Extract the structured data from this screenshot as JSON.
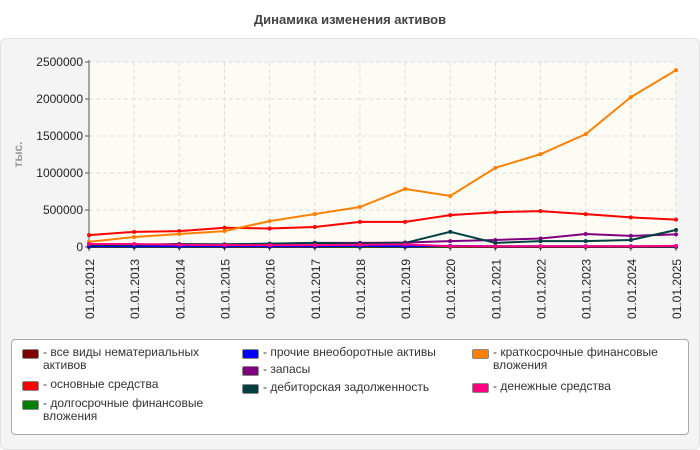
{
  "chart_data": {
    "type": "line",
    "title": "Динамика изменения активов",
    "ylabel": "тыс.",
    "ylim": [
      0,
      2500000
    ],
    "yticks": [
      "0",
      "500000",
      "1000000",
      "1500000",
      "2000000",
      "2500000"
    ],
    "grid": true,
    "legend_position": "bottom",
    "categories": [
      "01.01.2012",
      "01.01.2013",
      "01.01.2014",
      "01.01.2015",
      "01.01.2016",
      "01.01.2017",
      "01.01.2018",
      "01.01.2019",
      "01.01.2020",
      "01.01.2021",
      "01.01.2022",
      "01.01.2023",
      "01.01.2024",
      "01.01.2025"
    ],
    "series": [
      {
        "name": "- все виды нематериальных активов",
        "color": "#800000",
        "values": [
          0,
          0,
          0,
          0,
          0,
          0,
          0,
          0,
          0,
          0,
          0,
          0,
          0,
          0
        ]
      },
      {
        "name": "- основные средства",
        "color": "#ff0000",
        "values": [
          160000,
          205000,
          215000,
          260000,
          250000,
          270000,
          340000,
          340000,
          430000,
          470000,
          485000,
          445000,
          400000,
          370000
        ]
      },
      {
        "name": "- долгосрочные финансовые вложения",
        "color": "#008000",
        "values": [
          5000,
          5000,
          5000,
          5000,
          5000,
          5000,
          5000,
          5000,
          5000,
          5000,
          5000,
          5000,
          5000,
          5000
        ]
      },
      {
        "name": "- прочие внеоборотные активы",
        "color": "#0000ff",
        "values": [
          10000,
          10000,
          10000,
          10000,
          10000,
          10000,
          15000,
          10000,
          15000,
          10000,
          10000,
          10000,
          10000,
          10000
        ]
      },
      {
        "name": "- запасы",
        "color": "#800080",
        "values": [
          30000,
          30000,
          35000,
          35000,
          40000,
          55000,
          55000,
          60000,
          80000,
          95000,
          115000,
          175000,
          150000,
          170000
        ]
      },
      {
        "name": "- дебиторская задолженность",
        "color": "#004040",
        "values": [
          30000,
          30000,
          40000,
          35000,
          45000,
          55000,
          45000,
          55000,
          205000,
          55000,
          80000,
          80000,
          95000,
          230000
        ]
      },
      {
        "name": "- краткосрочные финансовые вложения",
        "color": "#ff8000",
        "values": [
          70000,
          135000,
          175000,
          215000,
          350000,
          445000,
          540000,
          785000,
          690000,
          1070000,
          1255000,
          1525000,
          2025000,
          2390000
        ]
      },
      {
        "name": "- денежные средства",
        "color": "#ff0080",
        "values": [
          40000,
          40000,
          30000,
          25000,
          25000,
          25000,
          30000,
          35000,
          10000,
          10000,
          10000,
          10000,
          10000,
          15000
        ]
      }
    ]
  }
}
